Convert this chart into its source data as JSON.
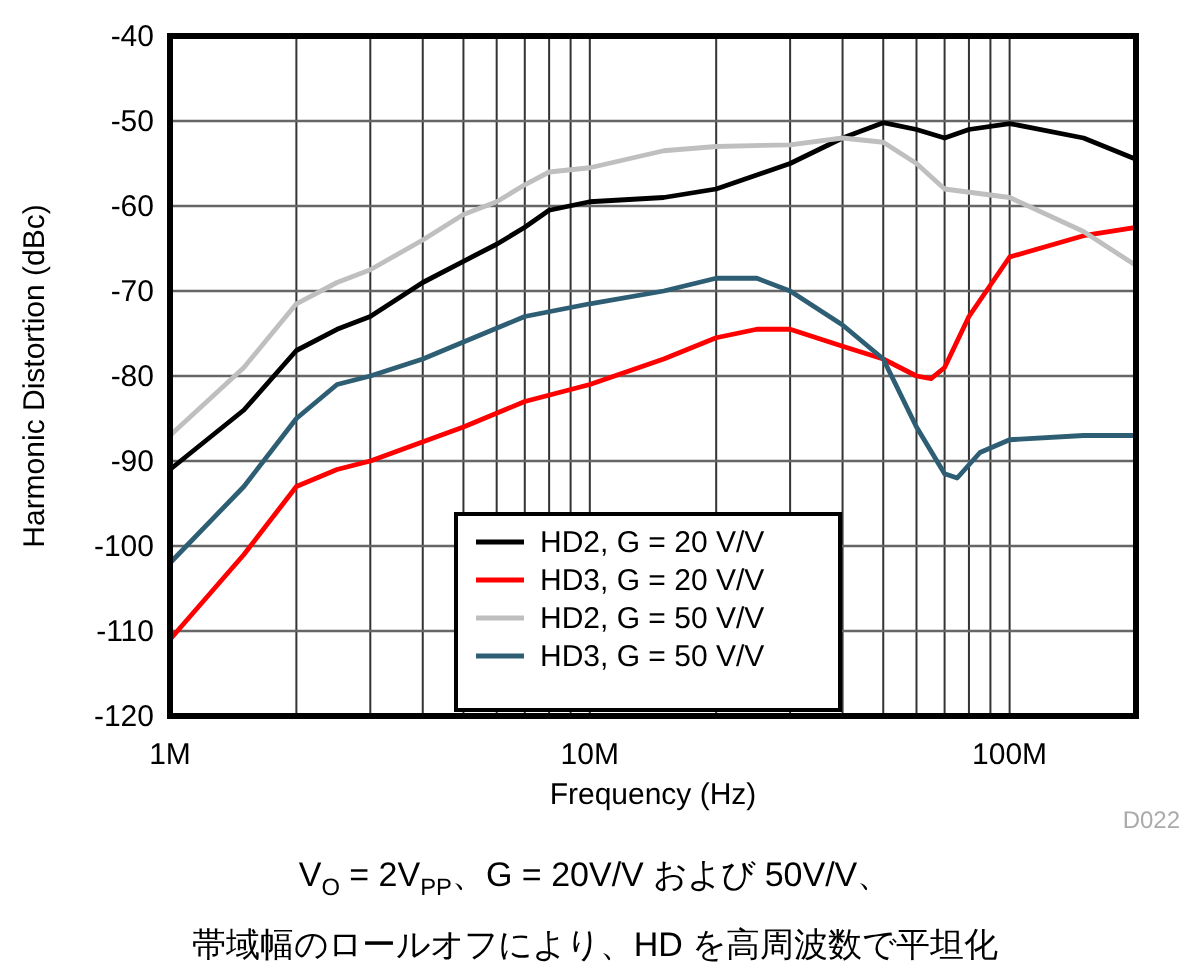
{
  "chart_data": {
    "type": "line",
    "xlabel": "Frequency (Hz)",
    "ylabel": "Harmonic Distortion (dBc)",
    "log": "x",
    "grid": true,
    "legend": "bottom",
    "xlim": [
      1000000.0,
      200000000.0
    ],
    "ylim": [
      -120,
      -40
    ],
    "xticks": [
      {
        "value": 1000000.0,
        "label": "1M"
      },
      {
        "value": 2000000.0,
        "label": null
      },
      {
        "value": 3000000.0,
        "label": null
      },
      {
        "value": 4000000.0,
        "label": null
      },
      {
        "value": 5000000.0,
        "label": null
      },
      {
        "value": 6000000.0,
        "label": null
      },
      {
        "value": 7000000.0,
        "label": null
      },
      {
        "value": 8000000.0,
        "label": null
      },
      {
        "value": 9000000.0,
        "label": null
      },
      {
        "value": 10000000.0,
        "label": "10M"
      },
      {
        "value": 20000000.0,
        "label": null
      },
      {
        "value": 30000000.0,
        "label": null
      },
      {
        "value": 40000000.0,
        "label": null
      },
      {
        "value": 50000000.0,
        "label": null
      },
      {
        "value": 60000000.0,
        "label": null
      },
      {
        "value": 70000000.0,
        "label": null
      },
      {
        "value": 80000000.0,
        "label": null
      },
      {
        "value": 90000000.0,
        "label": null
      },
      {
        "value": 100000000.0,
        "label": "100M"
      }
    ],
    "yticks": [
      -40,
      -50,
      -60,
      -70,
      -80,
      -90,
      -100,
      -110,
      -120
    ],
    "series": [
      {
        "name": "HD2, G = 20 V/V",
        "color": "#000000",
        "x": [
          1000000.0,
          1500000.0,
          2000000.0,
          2500000.0,
          3000000.0,
          4000000.0,
          5000000.0,
          6000000.0,
          7000000.0,
          8000000.0,
          10000000.0,
          15000000.0,
          20000000.0,
          30000000.0,
          40000000.0,
          50000000.0,
          60000000.0,
          70000000.0,
          80000000.0,
          100000000.0,
          150000000.0,
          200000000.0
        ],
        "values": [
          -91,
          -84,
          -77,
          -74.5,
          -73,
          -69,
          -66.5,
          -64.5,
          -62.5,
          -60.5,
          -59.5,
          -59,
          -58,
          -55,
          -52,
          -50.2,
          -51,
          -52,
          -51,
          -50.3,
          -52,
          -54.5
        ]
      },
      {
        "name": "HD3, G = 20 V/V",
        "color": "#ff0000",
        "x": [
          1000000.0,
          1500000.0,
          2000000.0,
          2500000.0,
          3000000.0,
          5000000.0,
          7000000.0,
          10000000.0,
          15000000.0,
          20000000.0,
          25000000.0,
          30000000.0,
          40000000.0,
          50000000.0,
          60000000.0,
          65000000.0,
          70000000.0,
          80000000.0,
          100000000.0,
          150000000.0,
          200000000.0
        ],
        "values": [
          -111,
          -101,
          -93,
          -91,
          -90,
          -86,
          -83,
          -81,
          -78,
          -75.5,
          -74.5,
          -74.5,
          -76.5,
          -78,
          -80,
          -80.3,
          -79,
          -73,
          -66,
          -63.5,
          -62.5
        ]
      },
      {
        "name": "HD2, G = 50 V/V",
        "color": "#bfbfbf",
        "x": [
          1000000.0,
          1500000.0,
          2000000.0,
          2500000.0,
          3000000.0,
          4000000.0,
          5000000.0,
          6000000.0,
          7000000.0,
          8000000.0,
          10000000.0,
          15000000.0,
          20000000.0,
          30000000.0,
          40000000.0,
          50000000.0,
          60000000.0,
          70000000.0,
          100000000.0,
          150000000.0,
          200000000.0
        ],
        "values": [
          -87,
          -79,
          -71.5,
          -69,
          -67.5,
          -64,
          -61,
          -59.5,
          -57.5,
          -56,
          -55.5,
          -53.5,
          -53,
          -52.8,
          -52,
          -52.5,
          -55,
          -58,
          -59,
          -63,
          -67
        ]
      },
      {
        "name": "HD3, G = 50 V/V",
        "color": "#2e5e74",
        "x": [
          1000000.0,
          1500000.0,
          2000000.0,
          2500000.0,
          3000000.0,
          4000000.0,
          5000000.0,
          7000000.0,
          10000000.0,
          15000000.0,
          20000000.0,
          25000000.0,
          30000000.0,
          40000000.0,
          50000000.0,
          60000000.0,
          70000000.0,
          75000000.0,
          85000000.0,
          100000000.0,
          150000000.0,
          200000000.0
        ],
        "values": [
          -102,
          -93,
          -85,
          -81,
          -80,
          -78,
          -76,
          -73,
          -71.5,
          -70,
          -68.5,
          -68.5,
          -70,
          -74,
          -78,
          -86,
          -91.5,
          -92,
          -89,
          -87.5,
          -87,
          -87
        ]
      }
    ],
    "annotations": [
      "D022",
      "V$_{O}$ = 2V$_{PP}$、G = 20V/V および 50V/V、",
      "帯域幅のロールオフにより、HD を高周波数で平坦化"
    ]
  }
}
